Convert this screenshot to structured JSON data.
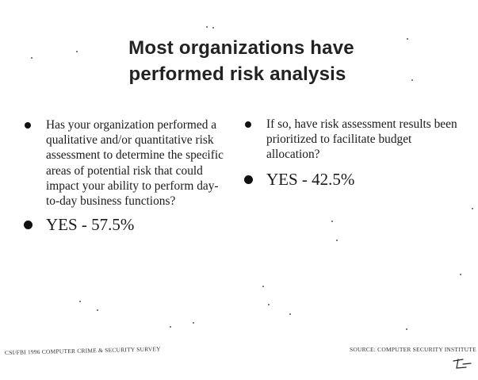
{
  "slide": {
    "title_line1": "Most organizations have",
    "title_line2": "performed risk analysis"
  },
  "left": {
    "question": "Has your organization performed a qualitative and/or quantitative risk assessment to determine the specific areas of potential risk that could impact your ability to perform day-to-day business functions?",
    "answer": "YES - 57.5%"
  },
  "right": {
    "question": "If so, have risk assessment results been prioritized to facilitate budget allocation?",
    "answer": "YES - 42.5%"
  },
  "footer": {
    "left": "CSI/FBI 1996 COMPUTER CRIME & SECURITY SURVEY",
    "right": "SOURCE: COMPUTER SECURITY INSTITUTE"
  }
}
